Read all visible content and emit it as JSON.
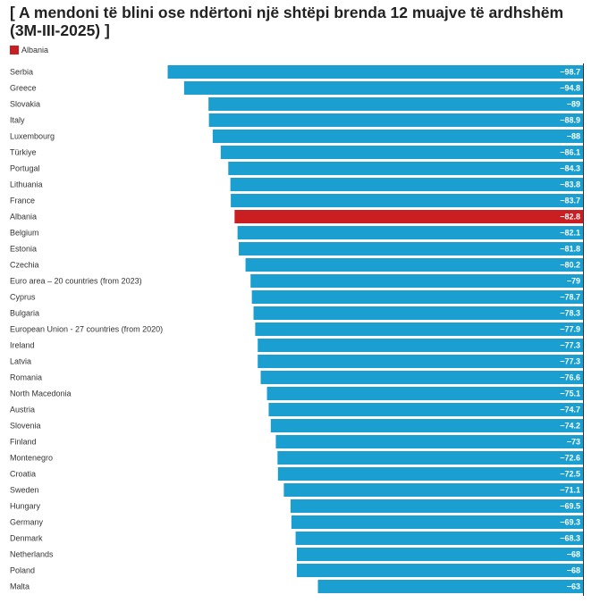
{
  "chart_data": {
    "type": "bar",
    "orientation": "horizontal",
    "title": "[ A mendoni të blini ose ndërtoni një shtëpi brenda 12 muajve të ardhshëm (3M-III-2025) ]",
    "legend": {
      "entries": [
        "Albania"
      ],
      "placement": "top-left"
    },
    "highlight_category": "Albania",
    "colors": {
      "default": "#1a9fd0",
      "highlight": "#c91e22",
      "axis": "#333333"
    },
    "xlim": [
      -100,
      0
    ],
    "grid": false,
    "categories": [
      "Serbia",
      "Greece",
      "Slovakia",
      "Italy",
      "Luxembourg",
      "Türkiye",
      "Portugal",
      "Lithuania",
      "France",
      "Albania",
      "Belgium",
      "Estonia",
      "Czechia",
      "Euro area – 20 countries (from 2023)",
      "Cyprus",
      "Bulgaria",
      "European Union - 27 countries (from 2020)",
      "Ireland",
      "Latvia",
      "Romania",
      "North Macedonia",
      "Austria",
      "Slovenia",
      "Finland",
      "Montenegro",
      "Croatia",
      "Sweden",
      "Hungary",
      "Germany",
      "Denmark",
      "Netherlands",
      "Poland",
      "Malta"
    ],
    "values": [
      -98.7,
      -94.8,
      -89,
      -88.9,
      -88,
      -86.1,
      -84.3,
      -83.8,
      -83.7,
      -82.8,
      -82.1,
      -81.8,
      -80.2,
      -79,
      -78.7,
      -78.3,
      -77.9,
      -77.3,
      -77.3,
      -76.6,
      -75.1,
      -74.7,
      -74.2,
      -73,
      -72.6,
      -72.5,
      -71.1,
      -69.5,
      -69.3,
      -68.3,
      -68,
      -68,
      -63
    ]
  }
}
